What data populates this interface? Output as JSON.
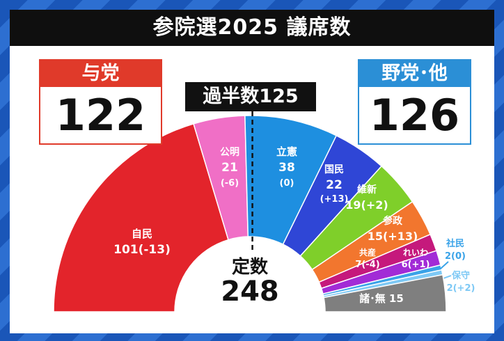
{
  "title": "参院選2025 議席数",
  "ruling": {
    "label": "与党",
    "total": "122"
  },
  "opposition": {
    "label": "野党･他",
    "total": "126"
  },
  "majority_label": "過半数125",
  "total_label": "定数",
  "total_seats": "248",
  "colors": {
    "ldp": "#e3242b",
    "komeito": "#f06fc6",
    "cdp": "#1e8fe0",
    "dpfp": "#2f46d6",
    "ishin": "#7fcf2a",
    "sanseito": "#f2762e",
    "jcp": "#c5197c",
    "reiwa": "#a22bd6",
    "sdp": "#3aa3e8",
    "conservative": "#7ec9f5",
    "others": "#7f7f7f"
  },
  "chart_data": {
    "type": "pie",
    "total": 248,
    "majority": 125,
    "series": [
      {
        "key": "ldp",
        "name": "自民",
        "seats": 101,
        "change": "-13",
        "seats_text": "101",
        "change_text": "(-13)"
      },
      {
        "key": "komeito",
        "name": "公明",
        "seats": 21,
        "change": "-6",
        "seats_text": "21",
        "change_text": "(-6)"
      },
      {
        "key": "cdp",
        "name": "立憲",
        "seats": 38,
        "change": "0",
        "seats_text": "38",
        "change_text": "(0)"
      },
      {
        "key": "dpfp",
        "name": "国民",
        "seats": 22,
        "change": "+13",
        "seats_text": "22",
        "change_text": "(+13)"
      },
      {
        "key": "ishin",
        "name": "維新",
        "seats": 19,
        "change": "+2",
        "seats_text": "19",
        "change_text": "(+2)"
      },
      {
        "key": "sanseito",
        "name": "参政",
        "seats": 15,
        "change": "+13",
        "seats_text": "15",
        "change_text": "(+13)"
      },
      {
        "key": "jcp",
        "name": "共産",
        "seats": 7,
        "change": "-4",
        "seats_text": "7",
        "change_text": "(-4)"
      },
      {
        "key": "reiwa",
        "name": "れいわ",
        "seats": 6,
        "change": "+1",
        "seats_text": "6",
        "change_text": "(+1)"
      },
      {
        "key": "sdp",
        "name": "社民",
        "seats": 2,
        "change": "0",
        "seats_text": "2",
        "change_text": "(0)"
      },
      {
        "key": "conservative",
        "name": "保守",
        "seats": 2,
        "change": "+2",
        "seats_text": "2",
        "change_text": "(+2)"
      },
      {
        "key": "others",
        "name": "諸･無",
        "seats": 15,
        "change": "",
        "seats_text": "15",
        "change_text": ""
      }
    ]
  }
}
